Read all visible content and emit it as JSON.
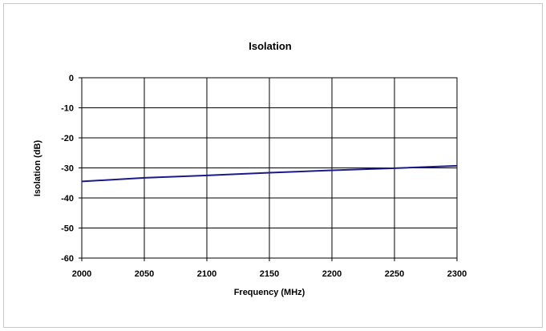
{
  "chart_data": {
    "type": "line",
    "title": "Isolation",
    "xlabel": "Frequency (MHz)",
    "ylabel": "Isolation (dB)",
    "xlim": [
      2000,
      2300
    ],
    "ylim": [
      -60,
      0
    ],
    "xticks": [
      2000,
      2050,
      2100,
      2150,
      2200,
      2250,
      2300
    ],
    "yticks": [
      0,
      -10,
      -20,
      -30,
      -40,
      -50,
      -60
    ],
    "grid": true,
    "legend": "none",
    "series": [
      {
        "color": "#1a1a8c",
        "x": [
          2000,
          2050,
          2100,
          2150,
          2200,
          2250,
          2300
        ],
        "y": [
          -34.5,
          -33.3,
          -32.5,
          -31.6,
          -30.8,
          -30.1,
          -29.3
        ]
      }
    ]
  }
}
